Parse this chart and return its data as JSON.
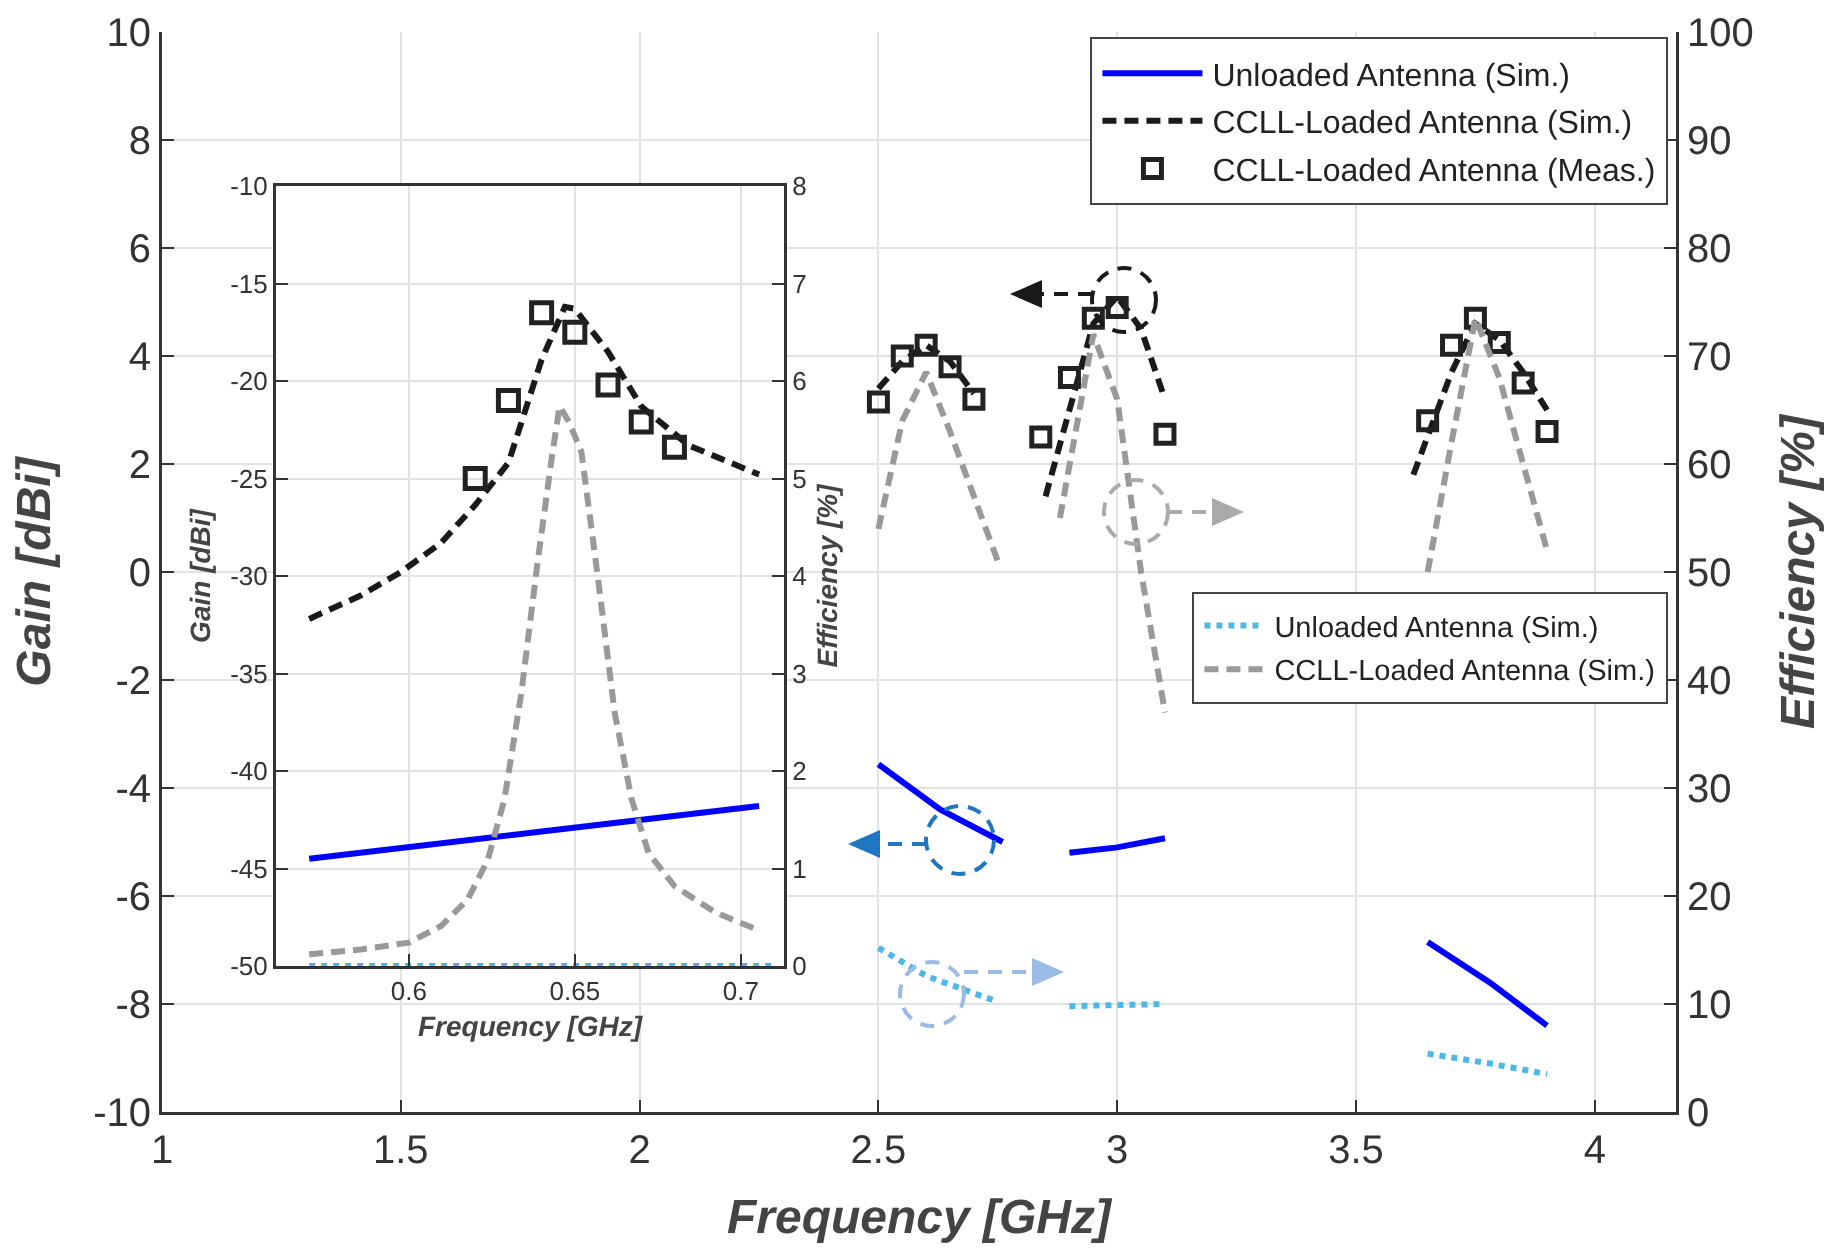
{
  "chart_data": [
    {
      "type": "line",
      "xlabel": "Frequency [GHz]",
      "ylabel": "Gain [dBi]",
      "y2label": "Efficiency [%]",
      "xlim": [
        1,
        4.17
      ],
      "xticks": [
        1,
        1.5,
        2,
        2.5,
        3,
        3.5,
        4
      ],
      "ylim": [
        -10,
        10
      ],
      "yticks": [
        -10,
        -8,
        -6,
        -4,
        -2,
        0,
        2,
        4,
        6,
        8,
        10
      ],
      "y2lim": [
        0,
        100
      ],
      "y2ticks": [
        0,
        10,
        20,
        30,
        40,
        50,
        60,
        70,
        80,
        90,
        100
      ],
      "grid": true,
      "legend": "top right",
      "series": [
        {
          "name": "Unloaded Antenna (Sim.)",
          "type": "line",
          "color": "#0000ff",
          "line_style": "solid",
          "x": [
            2.5,
            2.63,
            2.76,
            2.8,
            2.9,
            3.0,
            3.1,
            3.3,
            3.65,
            3.78,
            3.9
          ],
          "values": [
            -3.56,
            -4.4,
            -5.0,
            null,
            -5.2,
            -5.1,
            -4.93,
            null,
            -6.85,
            -7.6,
            -8.4
          ]
        },
        {
          "name": "CCLL-Loaded Antenna (Sim.)",
          "type": "line",
          "color": "#1a1a1a",
          "line_style": "dashed",
          "x": [
            2.5,
            2.55,
            2.6,
            2.65,
            2.7,
            2.78,
            2.85,
            2.9,
            2.95,
            3.0,
            3.05,
            3.1,
            3.3,
            3.62,
            3.7,
            3.75,
            3.8,
            3.85,
            3.9
          ],
          "values": [
            3.4,
            3.9,
            4.2,
            3.9,
            3.3,
            null,
            1.4,
            3.0,
            4.6,
            5.1,
            4.5,
            3.2,
            null,
            1.8,
            3.7,
            4.6,
            4.3,
            3.7,
            3.0
          ]
        },
        {
          "name": "CCLL-Loaded Antenna (Meas.)",
          "type": "scatter",
          "marker": "square",
          "color": "#222222",
          "x": [
            2.5,
            2.55,
            2.6,
            2.65,
            2.7,
            2.84,
            2.9,
            2.95,
            3.0,
            3.1,
            3.65,
            3.7,
            3.75,
            3.8,
            3.85,
            3.9
          ],
          "values": [
            3.15,
            4.0,
            4.2,
            3.8,
            3.2,
            2.5,
            3.6,
            4.7,
            4.9,
            2.55,
            2.8,
            4.2,
            4.7,
            4.25,
            3.5,
            2.6
          ]
        },
        {
          "name": "Unloaded Antenna (Sim.)",
          "type": "line",
          "axis": "y2",
          "color": "#4db8e8",
          "line_style": "dotted",
          "x": [
            2.5,
            2.6,
            2.75,
            2.8,
            2.9,
            3.0,
            3.1,
            3.3,
            3.65,
            3.78,
            3.9
          ],
          "values": [
            15.2,
            12.6,
            10.2,
            null,
            9.8,
            9.9,
            10.0,
            null,
            5.4,
            4.5,
            3.5
          ]
        },
        {
          "name": "CCLL-Loaded Antenna (Sim.)",
          "type": "line",
          "axis": "y2",
          "color": "#999999",
          "line_style": "dashed",
          "x": [
            2.5,
            2.55,
            2.6,
            2.65,
            2.7,
            2.75,
            2.8,
            2.88,
            2.95,
            3.0,
            3.05,
            3.1,
            3.3,
            3.65,
            3.7,
            3.75,
            3.8,
            3.85,
            3.9
          ],
          "values": [
            54,
            64,
            68.5,
            63,
            57,
            51,
            null,
            55,
            72,
            66,
            50,
            37,
            null,
            50,
            62,
            73.5,
            68,
            60,
            52
          ]
        }
      ]
    },
    {
      "type": "line",
      "xlabel": "Frequency [GHz]",
      "ylabel": "Gain [dBi]",
      "y2label": "Efficiency [%]",
      "xlim": [
        0.56,
        0.713
      ],
      "xticks": [
        0.6,
        0.65,
        0.7
      ],
      "ylim": [
        -50,
        -10
      ],
      "yticks": [
        -50,
        -45,
        -40,
        -35,
        -30,
        -25,
        -20,
        -15,
        -10
      ],
      "y2lim": [
        0,
        8
      ],
      "y2ticks": [
        0,
        1,
        2,
        3,
        4,
        5,
        6,
        7,
        8
      ],
      "grid": true,
      "series": [
        {
          "type": "line",
          "color": "#0000ff",
          "line_style": "solid",
          "x": [
            0.57,
            0.64,
            0.7055
          ],
          "values": [
            -44.5,
            -43.1,
            -41.8
          ]
        },
        {
          "type": "line",
          "color": "#1a1a1a",
          "line_style": "dashed",
          "x": [
            0.57,
            0.5855,
            0.5976,
            0.6097,
            0.6198,
            0.63,
            0.64,
            0.647,
            0.65,
            0.66,
            0.67,
            0.6843,
            0.7055
          ],
          "values": [
            -32.2,
            -31.0,
            -29.8,
            -28.3,
            -26.4,
            -24.2,
            -18.9,
            -16.2,
            -16.3,
            -18.5,
            -21.3,
            -23.3,
            -24.8
          ]
        },
        {
          "type": "scatter",
          "marker": "square",
          "color": "#222222",
          "x": [
            0.62,
            0.63,
            0.64,
            0.65,
            0.66,
            0.67,
            0.68
          ],
          "values": [
            -25.0,
            -21.0,
            -16.5,
            -17.5,
            -20.2,
            -22.1,
            -23.4
          ]
        },
        {
          "type": "line",
          "axis": "y2",
          "color": "#4db8e8",
          "line_style": "dotted",
          "x": [
            0.57,
            0.64,
            0.71
          ],
          "values": [
            0,
            0,
            0
          ]
        },
        {
          "type": "line",
          "axis": "y2",
          "color": "#999999",
          "line_style": "dashed",
          "x": [
            0.57,
            0.5855,
            0.6,
            0.6097,
            0.6177,
            0.6238,
            0.6288,
            0.6339,
            0.6389,
            0.643,
            0.6454,
            0.6484,
            0.652,
            0.657,
            0.662,
            0.6671,
            0.6722,
            0.68,
            0.6923,
            0.7044
          ],
          "values": [
            0.12,
            0.17,
            0.24,
            0.41,
            0.68,
            1.09,
            1.71,
            2.8,
            4.17,
            5.2,
            5.74,
            5.57,
            5.27,
            3.97,
            2.6,
            1.71,
            1.16,
            0.82,
            0.55,
            0.38
          ]
        }
      ]
    }
  ]
}
